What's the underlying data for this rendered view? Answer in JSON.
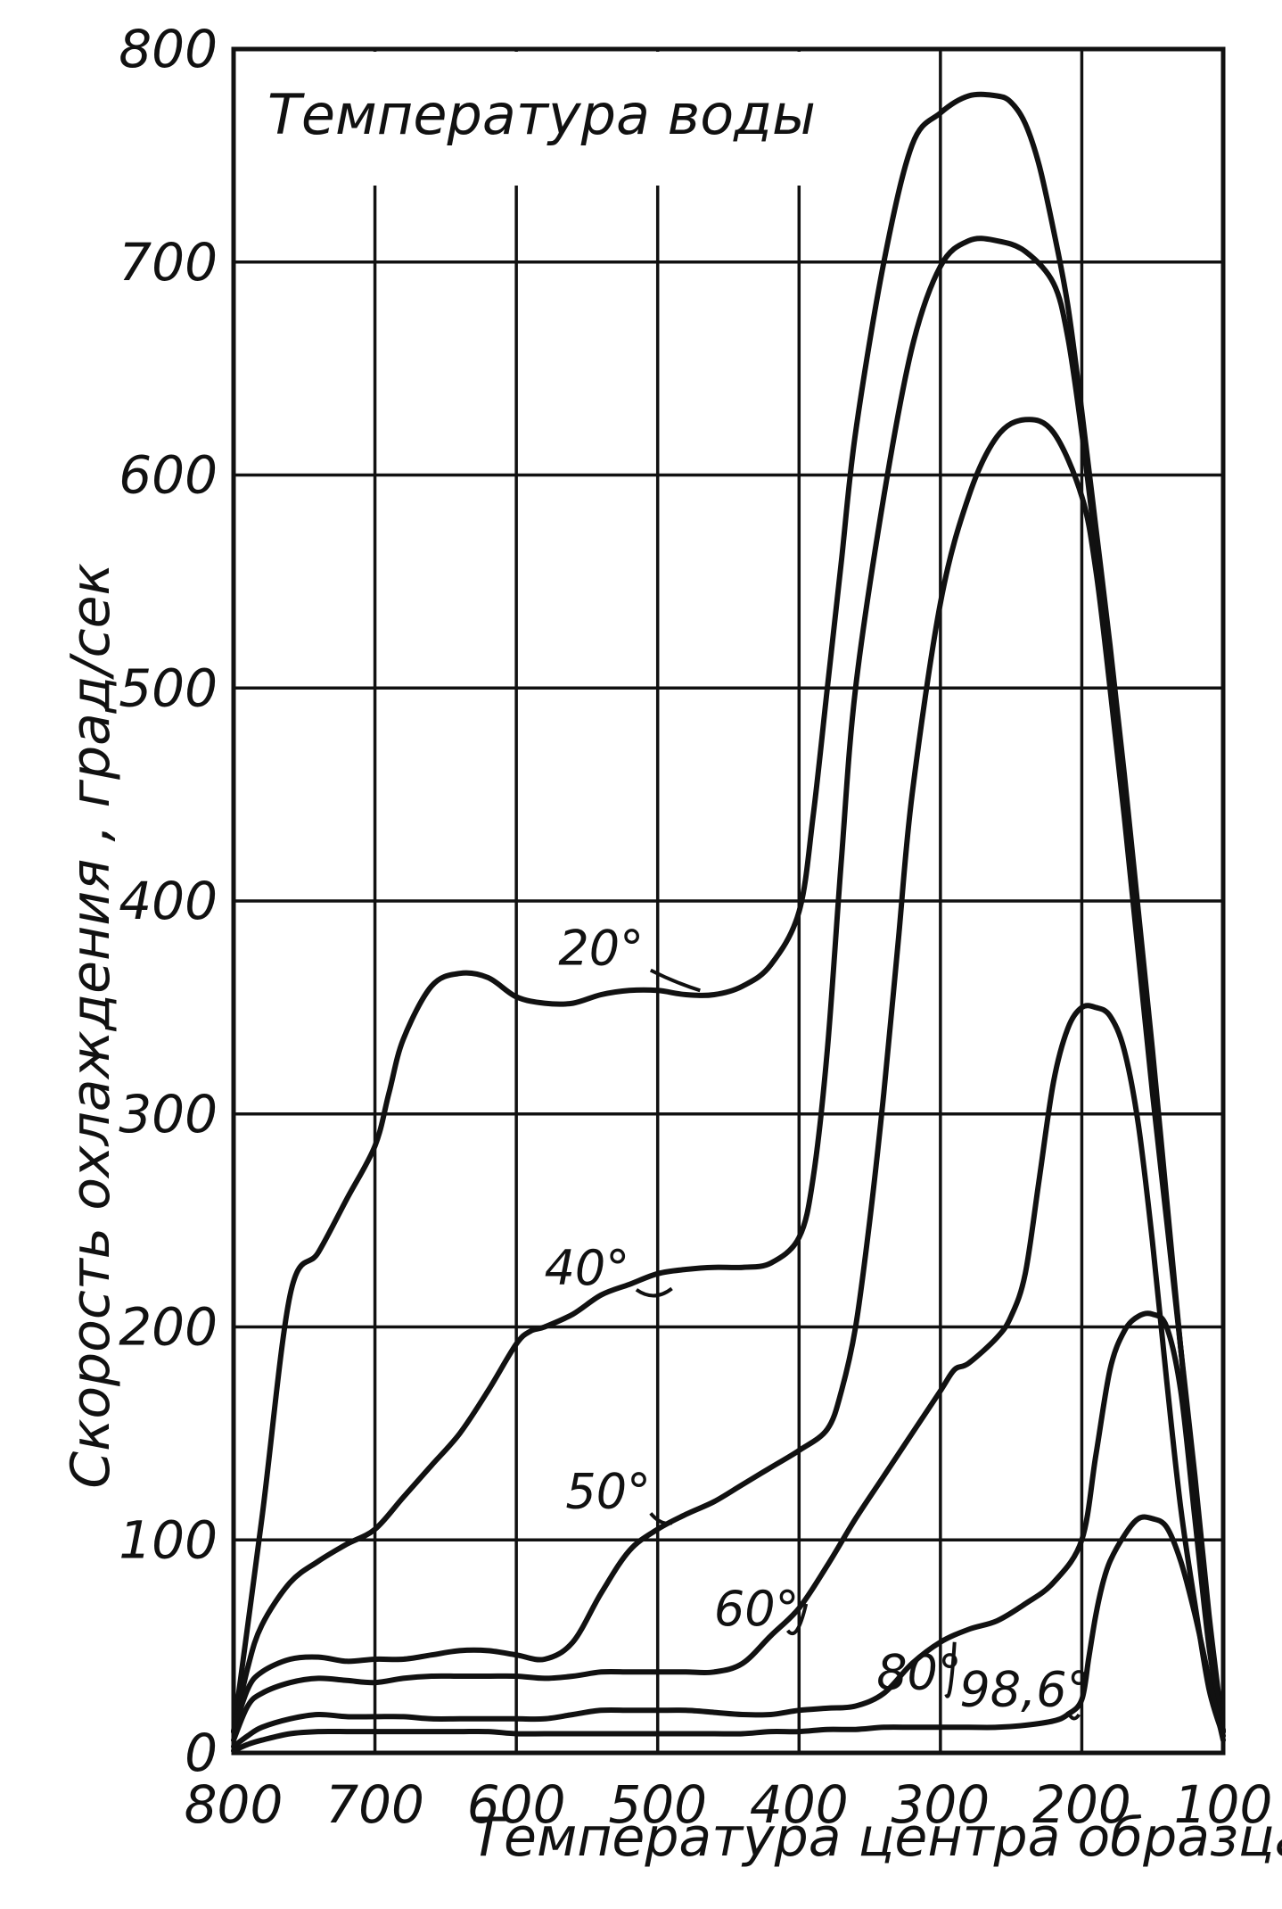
{
  "chart_data": {
    "type": "line",
    "title": "Температура воды",
    "xlabel": "Температура центра образца, град.",
    "ylabel": "Скорость охлаждения , град/сек",
    "xlim": [
      800,
      100
    ],
    "ylim": [
      0,
      800
    ],
    "x_reversed": true,
    "grid": true,
    "x_ticks": [
      "800",
      "700",
      "600",
      "500",
      "400",
      "300",
      "200",
      "100"
    ],
    "y_ticks": [
      "0",
      "100",
      "200",
      "300",
      "400",
      "500",
      "600",
      "700",
      "800"
    ],
    "colors": {
      "line": "#111111",
      "grid": "#111111",
      "background": "#ffffff"
    },
    "series": [
      {
        "name": "20°",
        "x": [
          800,
          780,
          760,
          740,
          720,
          700,
          690,
          680,
          660,
          640,
          620,
          600,
          580,
          560,
          540,
          520,
          500,
          480,
          460,
          440,
          420,
          400,
          390,
          380,
          370,
          360,
          340,
          320,
          300,
          280,
          260,
          250,
          240,
          230,
          220,
          210,
          200,
          190,
          180,
          170,
          160,
          150,
          140,
          130,
          120,
          110,
          100
        ],
        "y": [
          10,
          110,
          215,
          235,
          260,
          285,
          310,
          335,
          360,
          366,
          364,
          355,
          352,
          352,
          356,
          358,
          358,
          356,
          356,
          360,
          370,
          395,
          440,
          500,
          560,
          620,
          700,
          755,
          770,
          778,
          778,
          775,
          765,
          745,
          715,
          680,
          630,
          575,
          520,
          460,
          395,
          330,
          260,
          190,
          120,
          60,
          10
        ]
      },
      {
        "name": "40°",
        "x": [
          800,
          790,
          780,
          760,
          740,
          720,
          700,
          680,
          660,
          640,
          620,
          600,
          590,
          580,
          560,
          540,
          520,
          500,
          480,
          460,
          440,
          420,
          400,
          390,
          380,
          370,
          360,
          340,
          320,
          300,
          280,
          260,
          240,
          220,
          210,
          200,
          190,
          180,
          170,
          160,
          150,
          140,
          130,
          120,
          110,
          100
        ],
        "y": [
          10,
          40,
          60,
          80,
          90,
          98,
          105,
          120,
          135,
          150,
          170,
          192,
          198,
          200,
          206,
          215,
          220,
          225,
          227,
          228,
          228,
          230,
          242,
          270,
          330,
          420,
          500,
          590,
          660,
          698,
          710,
          710,
          705,
          690,
          665,
          620,
          565,
          505,
          445,
          385,
          320,
          255,
          190,
          125,
          60,
          10
        ]
      },
      {
        "name": "50°",
        "x": [
          800,
          790,
          780,
          760,
          740,
          720,
          700,
          680,
          660,
          640,
          620,
          600,
          580,
          560,
          540,
          520,
          500,
          480,
          460,
          440,
          420,
          400,
          380,
          370,
          360,
          350,
          340,
          330,
          320,
          300,
          280,
          260,
          240,
          220,
          200,
          190,
          180,
          170,
          160,
          150,
          140,
          130,
          120,
          110,
          100
        ],
        "y": [
          10,
          30,
          38,
          44,
          45,
          43,
          44,
          44,
          46,
          48,
          48,
          46,
          44,
          52,
          75,
          95,
          105,
          112,
          118,
          126,
          134,
          142,
          152,
          170,
          200,
          250,
          310,
          380,
          450,
          540,
          590,
          618,
          626,
          620,
          590,
          555,
          500,
          440,
          375,
          310,
          250,
          190,
          130,
          65,
          10
        ]
      },
      {
        "name": "60°",
        "x": [
          800,
          790,
          780,
          760,
          740,
          720,
          700,
          680,
          660,
          640,
          620,
          600,
          580,
          560,
          540,
          520,
          500,
          480,
          460,
          440,
          420,
          400,
          380,
          360,
          340,
          320,
          300,
          290,
          280,
          260,
          250,
          240,
          230,
          220,
          210,
          200,
          190,
          180,
          170,
          160,
          150,
          140,
          130,
          120,
          110,
          100
        ],
        "y": [
          6,
          22,
          28,
          33,
          35,
          34,
          33,
          35,
          36,
          36,
          36,
          36,
          35,
          36,
          38,
          38,
          38,
          38,
          38,
          42,
          55,
          68,
          88,
          110,
          130,
          150,
          170,
          180,
          183,
          195,
          205,
          225,
          270,
          315,
          340,
          350,
          350,
          346,
          330,
          295,
          240,
          175,
          115,
          70,
          30,
          8
        ]
      },
      {
        "name": "80°",
        "x": [
          800,
          790,
          780,
          760,
          740,
          720,
          700,
          680,
          660,
          640,
          620,
          600,
          580,
          560,
          540,
          520,
          500,
          480,
          460,
          440,
          420,
          400,
          380,
          360,
          340,
          320,
          300,
          280,
          260,
          240,
          220,
          200,
          190,
          180,
          170,
          160,
          150,
          140,
          130,
          120,
          110,
          100
        ],
        "y": [
          3,
          8,
          12,
          16,
          18,
          17,
          17,
          17,
          16,
          16,
          16,
          16,
          16,
          18,
          20,
          20,
          20,
          20,
          19,
          18,
          18,
          20,
          21,
          22,
          28,
          42,
          52,
          58,
          62,
          70,
          80,
          100,
          140,
          180,
          198,
          205,
          206,
          200,
          170,
          110,
          50,
          10
        ]
      },
      {
        "name": "98,6°",
        "x": [
          800,
          790,
          780,
          760,
          740,
          720,
          700,
          680,
          660,
          640,
          620,
          600,
          580,
          560,
          540,
          520,
          500,
          480,
          460,
          440,
          420,
          400,
          380,
          360,
          340,
          320,
          300,
          280,
          260,
          240,
          220,
          210,
          200,
          195,
          190,
          185,
          180,
          170,
          160,
          150,
          140,
          130,
          120,
          110,
          100
        ],
        "y": [
          1,
          4,
          6,
          9,
          10,
          10,
          10,
          10,
          10,
          10,
          10,
          9,
          9,
          9,
          9,
          9,
          9,
          9,
          9,
          9,
          10,
          10,
          11,
          11,
          12,
          12,
          12,
          12,
          12,
          13,
          15,
          18,
          25,
          45,
          65,
          80,
          90,
          102,
          110,
          110,
          106,
          90,
          65,
          35,
          6
        ]
      }
    ],
    "annotations": [
      {
        "text": "20°",
        "series": "20°"
      },
      {
        "text": "40°",
        "series": "40°"
      },
      {
        "text": "50°",
        "series": "50°"
      },
      {
        "text": "60°",
        "series": "60°"
      },
      {
        "text": "80°",
        "series": "80°"
      },
      {
        "text": "98,6°",
        "series": "98,6°"
      }
    ]
  }
}
